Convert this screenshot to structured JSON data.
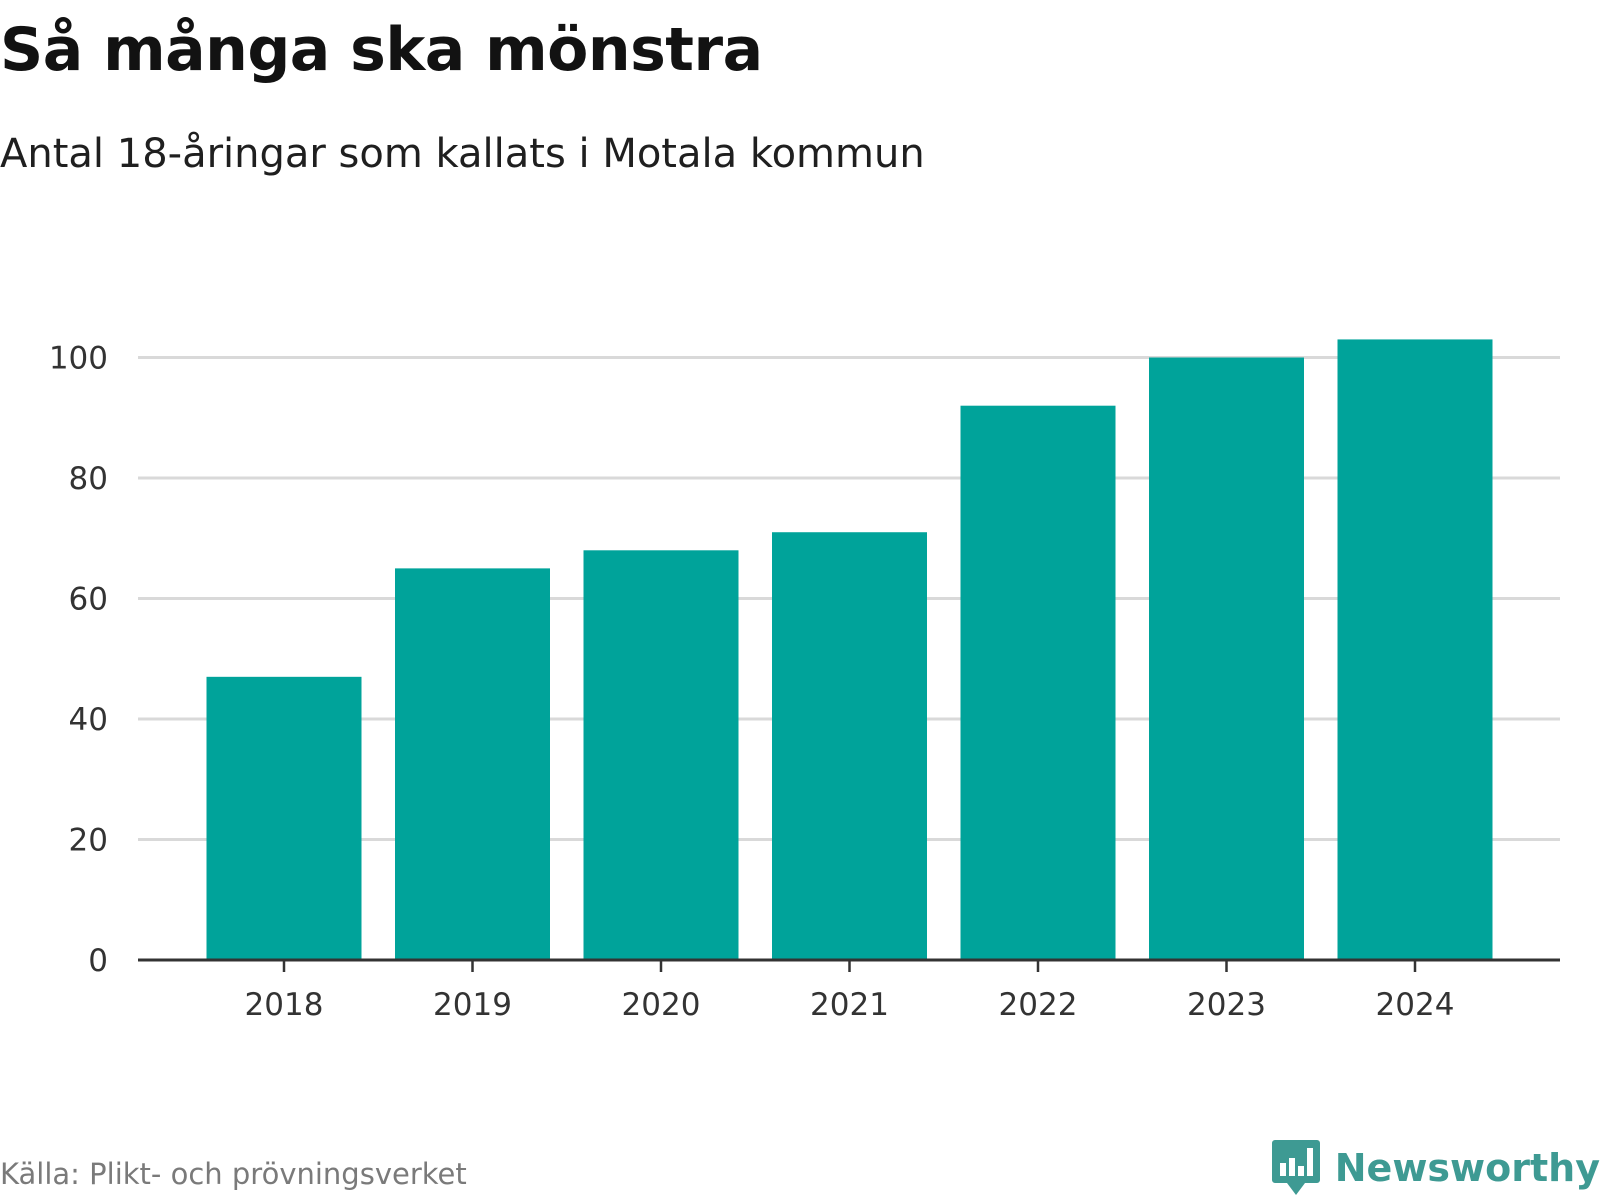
{
  "header": {
    "title": "Så många ska mönstra",
    "subtitle": "Antal 18-åringar som kallats i Motala kommun"
  },
  "footer": {
    "source": "Källa: Plikt- och prövningsverket",
    "brand": "Newsworthy",
    "brand_icon": "chat-bar-chart-icon"
  },
  "colors": {
    "bar": "#00a39a",
    "grid": "#d9d9d9",
    "axis": "#333333",
    "brand": "#3e9a93"
  },
  "chart_data": {
    "type": "bar",
    "title": "Så många ska mönstra",
    "subtitle": "Antal 18-åringar som kallats i Motala kommun",
    "xlabel": "",
    "ylabel": "",
    "categories": [
      "2018",
      "2019",
      "2020",
      "2021",
      "2022",
      "2023",
      "2024"
    ],
    "values": [
      47,
      65,
      68,
      71,
      92,
      100,
      103
    ],
    "ylim": [
      0,
      105
    ],
    "yticks": [
      0,
      20,
      40,
      60,
      80,
      100
    ],
    "grid": true,
    "legend": "none"
  }
}
